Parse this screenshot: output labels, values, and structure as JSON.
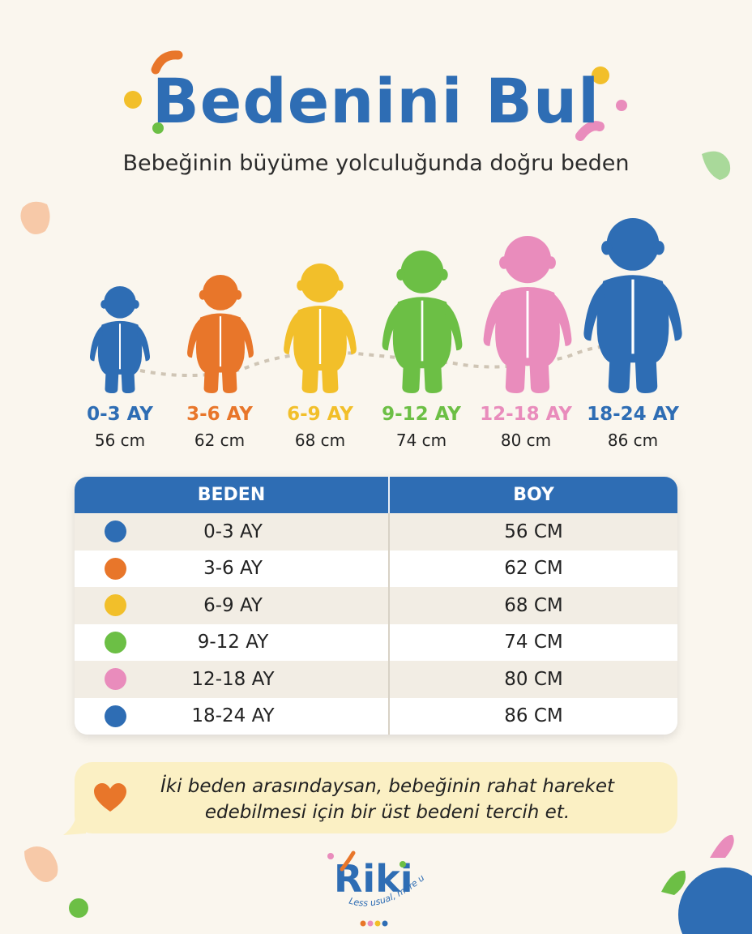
{
  "header": {
    "title": "Bedenini Bul",
    "subtitle": "Bebeğinin büyüme yolculuğunda doğru beden"
  },
  "babies": [
    {
      "label": "0-3 AY",
      "height": "56 cm",
      "color": "#2e6db4"
    },
    {
      "label": "3-6 AY",
      "height": "62 cm",
      "color": "#e8762a"
    },
    {
      "label": "6-9 AY",
      "height": "68 cm",
      "color": "#f2bf2a"
    },
    {
      "label": "9-12 AY",
      "height": "74 cm",
      "color": "#6cbf45"
    },
    {
      "label": "12-18 AY",
      "height": "80 cm",
      "color": "#e98cbc"
    },
    {
      "label": "18-24 AY",
      "height": "86 cm",
      "color": "#2e6db4"
    }
  ],
  "table": {
    "headers": {
      "size": "BEDEN",
      "height": "BOY"
    },
    "rows": [
      {
        "size": "0-3 AY",
        "height": "56 CM",
        "color": "#2e6db4"
      },
      {
        "size": "3-6 AY",
        "height": "62 CM",
        "color": "#e8762a"
      },
      {
        "size": "6-9 AY",
        "height": "68 CM",
        "color": "#f2bf2a"
      },
      {
        "size": "9-12 AY",
        "height": "74 CM",
        "color": "#6cbf45"
      },
      {
        "size": "12-18 AY",
        "height": "80 CM",
        "color": "#e98cbc"
      },
      {
        "size": "18-24 AY",
        "height": "86 CM",
        "color": "#2e6db4"
      }
    ]
  },
  "note": {
    "line1": "İki beden arasındaysan, bebeğinin rahat hareket",
    "line2": "edebilmesi için bir üst bedeni tercih et.",
    "icon": "heart-icon"
  },
  "logo": {
    "brand": "Riki",
    "tagline": "Less usual, more us"
  },
  "colors": {
    "primary": "#2e6db4",
    "background": "#faf6ee",
    "note_background": "#fbf0c4"
  }
}
